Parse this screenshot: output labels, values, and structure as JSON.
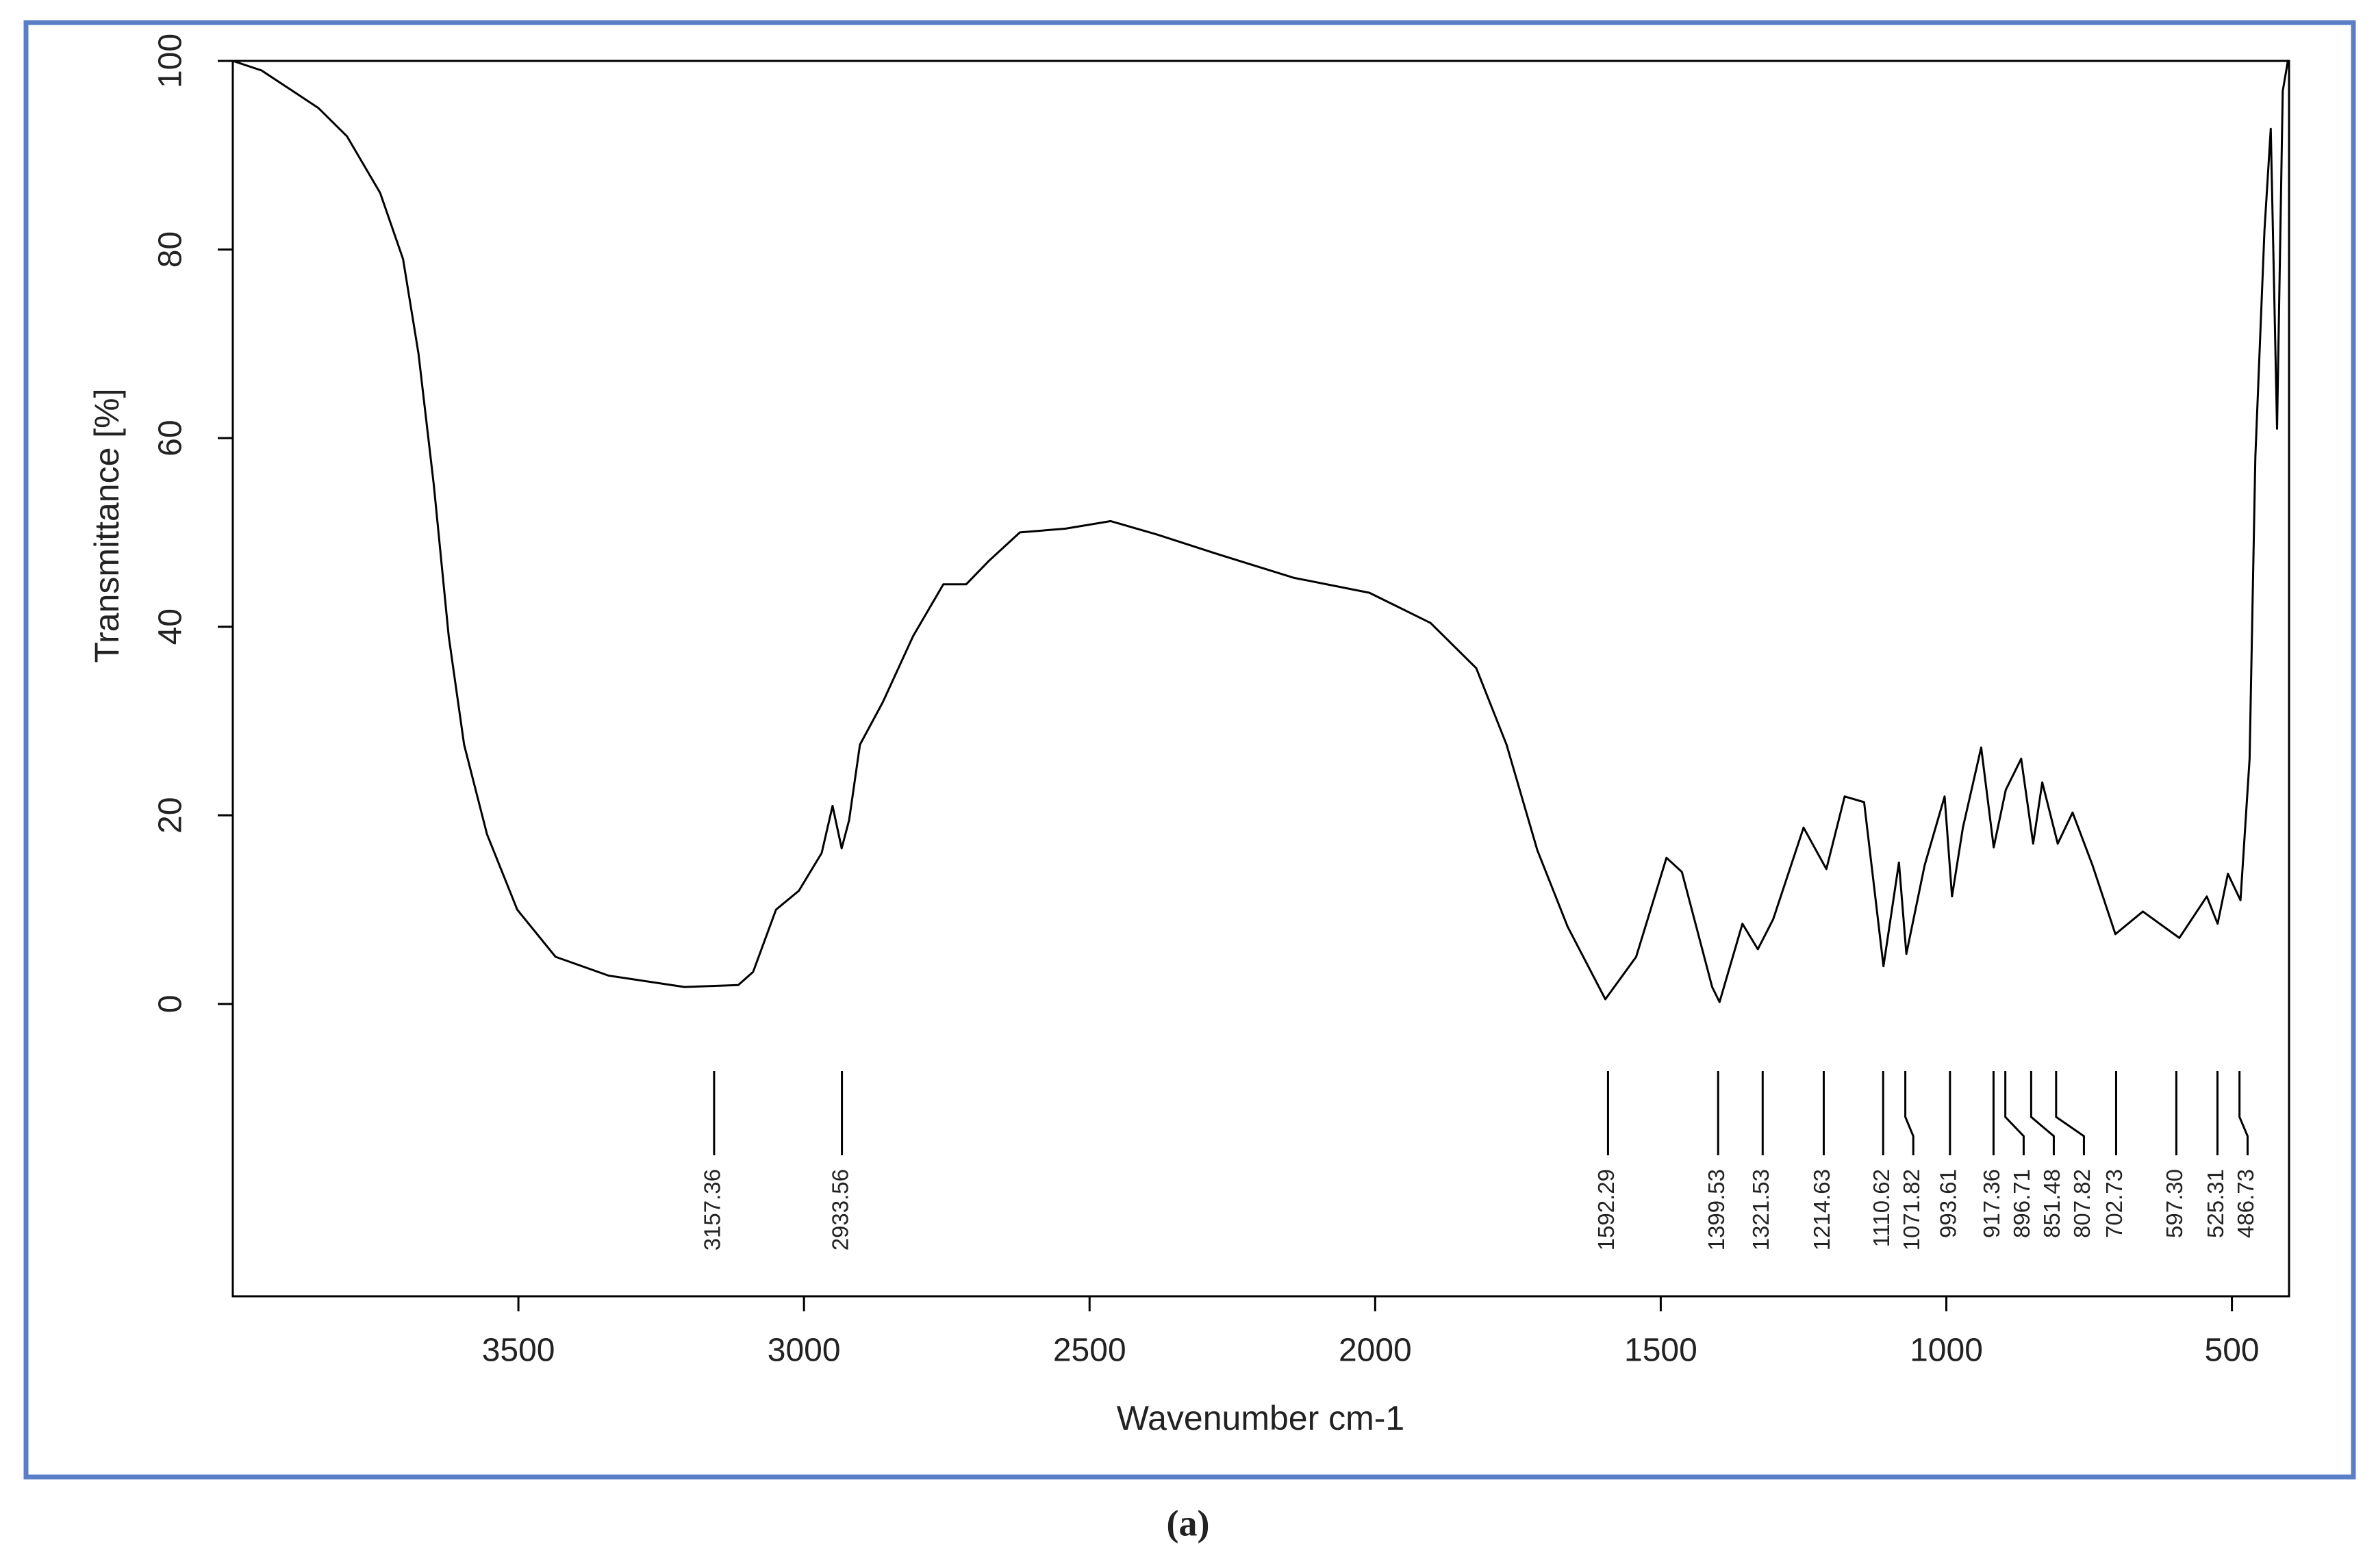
{
  "chart_data": {
    "type": "line",
    "xlabel": "Wavenumber cm-1",
    "ylabel": "Transmittance [%]",
    "caption": "(a)",
    "color": "#000000",
    "xlim": [
      4000,
      400
    ],
    "ylim": [
      -31,
      100
    ],
    "xticks": [
      3500,
      3000,
      2500,
      2000,
      1500,
      1000,
      500
    ],
    "yticks": [
      0,
      20,
      40,
      60,
      80,
      100
    ],
    "x": [
      4000,
      3950,
      3900,
      3850,
      3800,
      3742,
      3702,
      3675,
      3648,
      3622,
      3595,
      3555,
      3502,
      3435,
      3342,
      3209,
      3115,
      3089,
      3049,
      3009,
      2969,
      2950,
      2934,
      2921,
      2902,
      2862,
      2809,
      2756,
      2716,
      2676,
      2622,
      2542,
      2463,
      2383,
      2276,
      2143,
      2010,
      1903,
      1823,
      1770,
      1716,
      1663,
      1597,
      1543,
      1490,
      1463,
      1410,
      1397,
      1357,
      1330,
      1303,
      1250,
      1210,
      1178,
      1144,
      1110,
      1083,
      1070,
      1038,
      1003,
      990,
      971,
      939,
      917,
      896,
      869,
      848,
      832,
      805,
      779,
      744,
      704,
      656,
      592,
      544,
      525,
      507,
      485,
      469,
      459,
      443,
      432,
      421,
      411,
      402
    ],
    "values": [
      100,
      99,
      97,
      95,
      92,
      86,
      79,
      69,
      55,
      39,
      27.5,
      18,
      10,
      5,
      3,
      1.8,
      2,
      3.4,
      10,
      12,
      16,
      21,
      16.5,
      19.5,
      27.5,
      32,
      39,
      44.5,
      44.5,
      47,
      50,
      50.4,
      51.2,
      49.8,
      47.7,
      45.2,
      43.6,
      40.4,
      35.6,
      27.5,
      16.3,
      8.2,
      0.5,
      5,
      15.5,
      14,
      1.8,
      0.2,
      8.5,
      5.8,
      9,
      18.7,
      14.3,
      22,
      21.4,
      4,
      15,
      5.3,
      14.7,
      22,
      11.4,
      18.7,
      27.2,
      16.6,
      22.7,
      26,
      17,
      23.5,
      17,
      20.3,
      14.7,
      7.4,
      9.8,
      7,
      11.4,
      8.5,
      13.8,
      11,
      26,
      58,
      82,
      92.8,
      61,
      96.8,
      100
    ],
    "peaks": [
      3157.36,
      2933.56,
      1592.29,
      1399.53,
      1321.53,
      1214.63,
      1110.62,
      1071.82,
      993.61,
      917.36,
      896.71,
      851.48,
      807.82,
      702.73,
      {
        "value": 597.3,
        "label": "597.30"
      },
      525.31,
      486.73
    ]
  }
}
